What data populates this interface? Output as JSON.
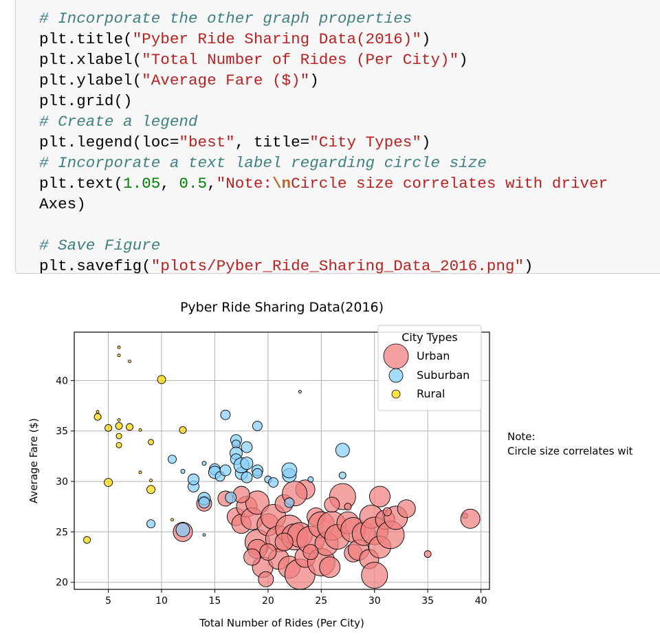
{
  "code_cell": {
    "lines": [
      {
        "comment": "# Incorporate the other graph properties"
      },
      {
        "call": "plt.title(",
        "str": "\"Pyber Ride Sharing Data(2016)\"",
        "end": ")"
      },
      {
        "call": "plt.xlabel(",
        "str": "\"Total Number of Rides (Per City)\"",
        "end": ")"
      },
      {
        "call": "plt.ylabel(",
        "str": "\"Average Fare ($)\"",
        "end": ")"
      },
      {
        "plain": "plt.grid()"
      },
      {
        "comment": "# Create a legend"
      },
      {
        "call": "plt.legend(loc=",
        "str": "\"best\"",
        "mid": ", title=",
        "str2": "\"City Types\"",
        "end": ")"
      },
      {
        "comment": "# Incorporate a text label regarding circle size"
      },
      {
        "call": "plt.text(",
        "num1": "1.05",
        "sep": ", ",
        "num2": "0.5",
        "comma": ",",
        "str_open": "\"Note:",
        "escape": "\\n",
        "str_rest": "Circle size correlates with driver"
      },
      {
        "plain": "Axes)"
      },
      {
        "plain": ""
      },
      {
        "comment": "# Save Figure"
      },
      {
        "call": "plt.savefig(",
        "str": "\"plots/Pyber_Ride_Sharing_Data_2016.png\"",
        "end": ")"
      }
    ]
  },
  "chart_data": {
    "type": "scatter",
    "title": "Pyber Ride Sharing Data(2016)",
    "xlabel": "Total Number of Rides (Per City)",
    "ylabel": "Average Fare ($)",
    "xlim": [
      1.8,
      40.8
    ],
    "ylim": [
      19.3,
      44.8
    ],
    "xticks": [
      5,
      10,
      15,
      20,
      25,
      30,
      35,
      40
    ],
    "yticks": [
      20,
      25,
      30,
      35,
      40
    ],
    "grid": true,
    "legend": {
      "title": "City Types",
      "placement": "top-right",
      "entries": [
        "Urban",
        "Suburban",
        "Rural"
      ]
    },
    "note": {
      "line1": "Note:",
      "line2": "Circle size correlates wit"
    },
    "colors": {
      "Urban": "#f08080",
      "Suburban": "#87cefa",
      "Rural": "#ffd700",
      "edge": "#000000"
    },
    "series": [
      {
        "name": "Urban",
        "points": [
          [
            17,
            26.5,
            13
          ],
          [
            17.5,
            25.8,
            14
          ],
          [
            18,
            27.5,
            15
          ],
          [
            18.5,
            26.3,
            16
          ],
          [
            19,
            24,
            18
          ],
          [
            19,
            27.9,
            17
          ],
          [
            19.5,
            21.5,
            15
          ],
          [
            19.8,
            20.3,
            11
          ],
          [
            19,
            23.3,
            14
          ],
          [
            18.5,
            22.5,
            12
          ],
          [
            20,
            25.7,
            16
          ],
          [
            20.5,
            26.5,
            18
          ],
          [
            21,
            24.3,
            19
          ],
          [
            21,
            22.3,
            15
          ],
          [
            21.5,
            27.8,
            13
          ],
          [
            22,
            25.3,
            20
          ],
          [
            22,
            21.5,
            16
          ],
          [
            22.5,
            24.5,
            19
          ],
          [
            23,
            20.8,
            22
          ],
          [
            23,
            24.7,
            18
          ],
          [
            23.5,
            22.5,
            15
          ],
          [
            23.5,
            29.2,
            14
          ],
          [
            24,
            24.2,
            20
          ],
          [
            24.5,
            26.5,
            13
          ],
          [
            25,
            25.7,
            19
          ],
          [
            25,
            22,
            20
          ],
          [
            25.5,
            23.8,
            17
          ],
          [
            25.8,
            21.5,
            15
          ],
          [
            26,
            25.6,
            21
          ],
          [
            26.5,
            24.5,
            18
          ],
          [
            27,
            28.5,
            19
          ],
          [
            27.5,
            25.9,
            16
          ],
          [
            28,
            22.9,
            13
          ],
          [
            28,
            25.2,
            18
          ],
          [
            28.5,
            23.2,
            15
          ],
          [
            29,
            24.8,
            17
          ],
          [
            29.5,
            22.3,
            14
          ],
          [
            29.7,
            26.5,
            17
          ],
          [
            30,
            25.1,
            20
          ],
          [
            30,
            20.7,
            19
          ],
          [
            30.5,
            23.5,
            16
          ],
          [
            30.5,
            28.5,
            15
          ],
          [
            31,
            26.2,
            14
          ],
          [
            31.5,
            24.7,
            20
          ],
          [
            32,
            26.4,
            17
          ],
          [
            33,
            27.3,
            13
          ],
          [
            35,
            22.8,
            5
          ],
          [
            38.5,
            26.6,
            4
          ],
          [
            39,
            26.3,
            14
          ],
          [
            16,
            28.3,
            11
          ],
          [
            14,
            27.8,
            11
          ],
          [
            17.5,
            28.7,
            12
          ],
          [
            22.5,
            28.8,
            18
          ],
          [
            26,
            27.7,
            11
          ],
          [
            20,
            23,
            12
          ],
          [
            21.5,
            24,
            13
          ],
          [
            27.5,
            27.5,
            5
          ],
          [
            31.2,
            27,
            6
          ],
          [
            12,
            25,
            14
          ],
          [
            24,
            23,
            11
          ]
        ]
      },
      {
        "name": "Suburban",
        "points": [
          [
            11,
            32.2,
            6
          ],
          [
            12,
            31,
            3
          ],
          [
            12,
            25.2,
            10
          ],
          [
            13,
            29.5,
            8
          ],
          [
            13,
            30.2,
            8
          ],
          [
            14,
            28.3,
            9
          ],
          [
            14,
            27.9,
            8
          ],
          [
            14,
            24.7,
            2
          ],
          [
            14,
            31.8,
            3
          ],
          [
            15,
            31.2,
            8
          ],
          [
            15,
            30.9,
            9
          ],
          [
            15.5,
            30.5,
            7
          ],
          [
            16,
            36.6,
            7
          ],
          [
            16,
            31.1,
            8
          ],
          [
            16.5,
            28.4,
            8
          ],
          [
            17,
            34.1,
            8
          ],
          [
            17,
            33.7,
            6
          ],
          [
            17,
            32.8,
            9
          ],
          [
            17,
            32.2,
            8
          ],
          [
            17.5,
            30.8,
            9
          ],
          [
            17.5,
            31.6,
            11
          ],
          [
            18,
            31.8,
            9
          ],
          [
            18,
            33.4,
            8
          ],
          [
            18,
            30.4,
            8
          ],
          [
            19,
            35.5,
            7
          ],
          [
            19,
            31.1,
            8
          ],
          [
            19,
            30.8,
            7
          ],
          [
            20,
            30.2,
            5
          ],
          [
            20.5,
            29.9,
            7
          ],
          [
            22,
            30.6,
            10
          ],
          [
            22,
            31.1,
            11
          ],
          [
            22,
            27.9,
            7
          ],
          [
            23,
            38.9,
            2
          ],
          [
            24,
            30.2,
            4
          ],
          [
            27,
            33.1,
            10
          ],
          [
            27,
            30.6,
            5
          ],
          [
            9,
            25.8,
            6
          ]
        ]
      },
      {
        "name": "Rural",
        "points": [
          [
            3,
            24.2,
            5
          ],
          [
            4,
            36.9,
            2
          ],
          [
            4,
            36.4,
            5
          ],
          [
            5,
            35.3,
            5
          ],
          [
            5,
            29.9,
            6
          ],
          [
            6,
            43.3,
            2
          ],
          [
            6,
            42.5,
            2
          ],
          [
            6,
            35.5,
            5
          ],
          [
            6,
            34.5,
            4
          ],
          [
            6,
            33.6,
            4
          ],
          [
            6,
            36.1,
            2
          ],
          [
            7,
            35.4,
            5
          ],
          [
            7,
            41.9,
            2
          ],
          [
            8,
            35.1,
            2
          ],
          [
            8,
            30.9,
            2
          ],
          [
            9,
            30.1,
            2
          ],
          [
            9,
            33.9,
            4
          ],
          [
            9,
            29.2,
            6
          ],
          [
            10,
            40.1,
            6
          ],
          [
            11,
            26.2,
            2
          ],
          [
            12,
            35.1,
            5
          ]
        ]
      }
    ]
  }
}
